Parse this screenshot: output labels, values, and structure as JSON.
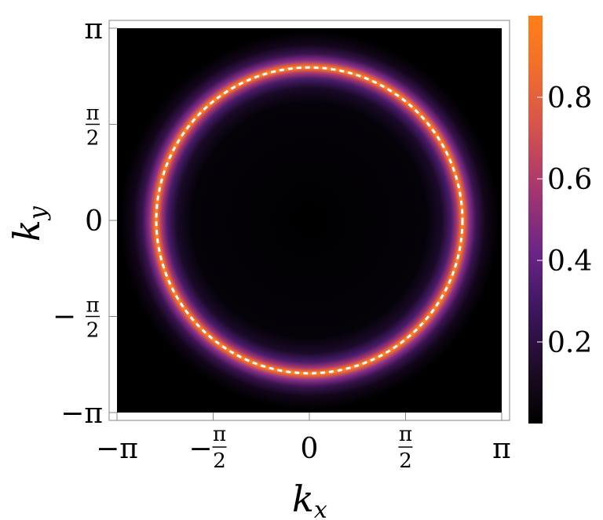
{
  "chart_data": {
    "type": "heatmap",
    "title": "",
    "xlabel": "k",
    "xlabel_sub": "x",
    "ylabel": "k",
    "ylabel_sub": "y",
    "xlim": [
      -3.1416,
      3.1416
    ],
    "ylim": [
      -3.1416,
      3.1416
    ],
    "x_ticks": [
      {
        "value": -3.1416,
        "label": "−π"
      },
      {
        "value": -1.5708,
        "label_sign": "−",
        "label_num": "π",
        "label_den": "2"
      },
      {
        "value": 0,
        "label": "0"
      },
      {
        "value": 1.5708,
        "label_num": "π",
        "label_den": "2"
      },
      {
        "value": 3.1416,
        "label": "π"
      }
    ],
    "y_ticks": [
      {
        "value": 3.1416,
        "label": "π"
      },
      {
        "value": 1.5708,
        "label_num": "π",
        "label_den": "2"
      },
      {
        "value": 0,
        "label": "0"
      },
      {
        "value": -1.5708,
        "label_sign": "−",
        "label_num": "π",
        "label_den": "2"
      },
      {
        "value": -3.1416,
        "label": "−π"
      }
    ],
    "ring": {
      "center": [
        0,
        0
      ],
      "radius": 2.5,
      "peak_value": 1.0,
      "background_value": 0.0
    },
    "dashed_contour": {
      "center": [
        0,
        0
      ],
      "radius": 2.5,
      "color": "#ffffff"
    },
    "colorbar": {
      "range": [
        0,
        1
      ],
      "tick_labels": [
        "0.8",
        "0.6",
        "0.4",
        "0.2"
      ],
      "tick_values": [
        0.8,
        0.6,
        0.4,
        0.2
      ],
      "colors": [
        "#000000",
        "#1f0b2a",
        "#4a1c6b",
        "#8a2f8a",
        "#c44a5a",
        "#e86a35",
        "#ff7f1a"
      ]
    }
  }
}
